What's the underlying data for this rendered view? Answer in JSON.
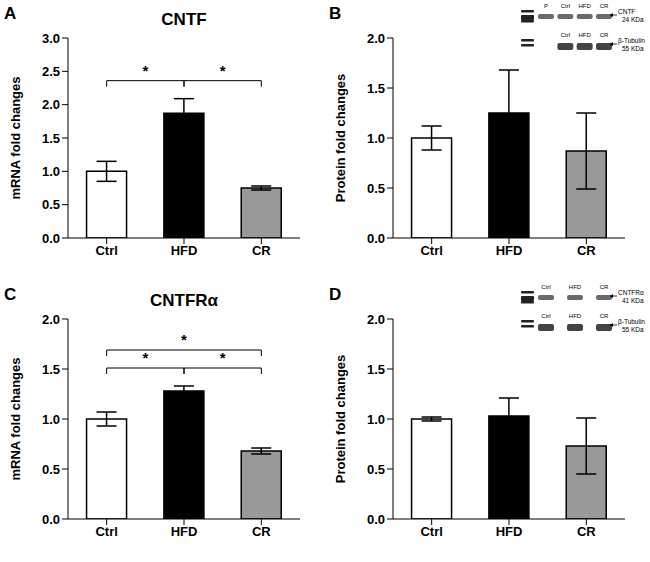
{
  "chart_data": [
    {
      "type": "bar",
      "panel_label": "A",
      "title": "CNTF",
      "y_label": "mRNA fold changes",
      "categories": [
        "Ctrl",
        "HFD",
        "CR"
      ],
      "values": [
        1.0,
        1.87,
        0.75
      ],
      "errors": [
        0.15,
        0.22,
        0.03
      ],
      "colors": [
        "#ffffff",
        "#000000",
        "#999999"
      ],
      "ylim": [
        0,
        3
      ],
      "yticks": [
        {
          "value": 0,
          "label": "0.0"
        },
        0.5,
        {
          "value": 1,
          "label": "1.0"
        },
        1.5,
        {
          "value": 2,
          "label": "2.0"
        },
        2.5,
        {
          "value": 3,
          "label": "3.0"
        }
      ],
      "annotations": [
        {
          "from": "Ctrl",
          "to": "HFD",
          "text": "*"
        },
        {
          "from": "HFD",
          "to": "CR",
          "text": "*"
        }
      ]
    },
    {
      "type": "bar",
      "panel_label": "B",
      "y_label": "Protein fold changes",
      "categories": [
        "Ctrl",
        "HFD",
        "CR"
      ],
      "values": [
        1.0,
        1.25,
        0.87
      ],
      "errors": [
        0.12,
        0.43,
        0.38
      ],
      "colors": [
        "#ffffff",
        "#000000",
        "#999999"
      ],
      "ylim": [
        0,
        2
      ],
      "yticks": [
        {
          "value": 0,
          "label": "0.0"
        },
        0.5,
        {
          "value": 1,
          "label": "1.0"
        },
        1.5,
        {
          "value": 2,
          "label": "2.0"
        }
      ],
      "blot": {
        "rows": [
          {
            "lanes": [
              "P",
              "Ctrl",
              "HFD",
              "CR"
            ],
            "name": "CNTF",
            "size": "24 KDa"
          },
          {
            "lanes": [
              "Ctrl",
              "HFD",
              "CR"
            ],
            "name": "β-Tubulin",
            "size": "55 KDa"
          }
        ]
      }
    },
    {
      "type": "bar",
      "panel_label": "C",
      "title": "CNTFRα",
      "y_label": "mRNA fold changes",
      "categories": [
        "Ctrl",
        "HFD",
        "CR"
      ],
      "values": [
        1.0,
        1.28,
        0.68
      ],
      "errors": [
        0.07,
        0.05,
        0.03
      ],
      "colors": [
        "#ffffff",
        "#000000",
        "#999999"
      ],
      "ylim": [
        0,
        2
      ],
      "yticks": [
        {
          "value": 0,
          "label": "0.0"
        },
        0.5,
        {
          "value": 1,
          "label": "1.0"
        },
        1.5,
        {
          "value": 2,
          "label": "2.0"
        }
      ],
      "annotations": [
        {
          "from": "Ctrl",
          "to": "HFD",
          "text": "*"
        },
        {
          "from": "HFD",
          "to": "CR",
          "text": "*"
        },
        {
          "from": "Ctrl",
          "to": "CR",
          "text": "*"
        }
      ]
    },
    {
      "type": "bar",
      "panel_label": "D",
      "y_label": "Protein fold changes",
      "categories": [
        "Ctrl",
        "HFD",
        "CR"
      ],
      "values": [
        1.0,
        1.03,
        0.73
      ],
      "errors": [
        0.02,
        0.18,
        0.28
      ],
      "colors": [
        "#ffffff",
        "#000000",
        "#999999"
      ],
      "ylim": [
        0,
        2
      ],
      "yticks": [
        {
          "value": 0,
          "label": "0.0"
        },
        0.5,
        {
          "value": 1,
          "label": "1.0"
        },
        1.5,
        {
          "value": 2,
          "label": "2.0"
        }
      ],
      "blot": {
        "rows": [
          {
            "lanes": [
              "Ctrl",
              "HFD",
              "CR"
            ],
            "name": "CNTFRα",
            "size": "41 KDa"
          },
          {
            "lanes": [
              "Ctrl",
              "HFD",
              "CR"
            ],
            "name": "β-Tubulin",
            "size": "55 KDa"
          }
        ]
      }
    }
  ]
}
